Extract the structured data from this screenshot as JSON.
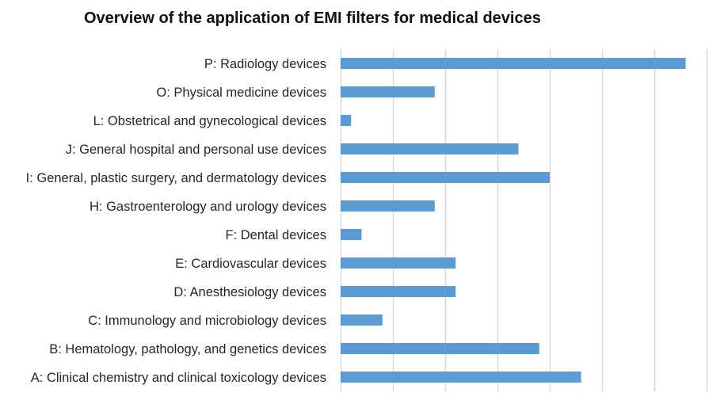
{
  "chart_data": {
    "type": "bar",
    "orientation": "horizontal",
    "title": "Overview of the application of EMI filters for medical devices",
    "xlabel": "",
    "ylabel": "",
    "categories": [
      "P: Radiology devices",
      "O: Physical medicine devices",
      "L: Obstetrical and gynecological devices",
      "J: General hospital and personal use devices",
      "I: General, plastic surgery, and dermatology devices",
      "H: Gastroenterology and urology devices",
      "F: Dental devices",
      "E: Cardiovascular devices",
      "D: Anesthesiology devices",
      "C: Immunology and microbiology devices",
      "B: Hematology, pathology, and genetics devices",
      "A: Clinical chemistry and clinical toxicology devices"
    ],
    "values": [
      33,
      9,
      1,
      17,
      20,
      9,
      2,
      11,
      11,
      4,
      19,
      23
    ],
    "xlim": [
      0,
      35
    ],
    "grid": true,
    "legend": "none",
    "bar_color": "#5b9bd5",
    "grid_color": "#d9d9d9"
  }
}
